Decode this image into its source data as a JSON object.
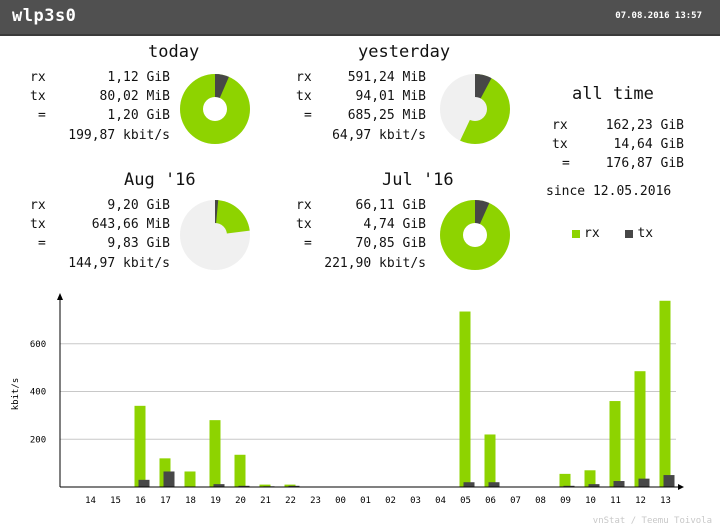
{
  "header": {
    "interface": "wlp3s0",
    "timestamp": "07.08.2016 13:57"
  },
  "summaries": [
    {
      "title": "today",
      "rx": "1,12 GiB",
      "tx": "80,02 MiB",
      "total": "1,20 GiB",
      "rate": "199,87 kbit/s",
      "pie": {
        "fill_fraction": 1.0,
        "tx_fraction": 0.065
      }
    },
    {
      "title": "yesterday",
      "rx": "591,24 MiB",
      "tx": "94,01 MiB",
      "total": "685,25 MiB",
      "rate": "64,97 kbit/s",
      "pie": {
        "fill_fraction": 0.57,
        "tx_fraction": 0.137
      }
    },
    {
      "title": "Aug '16",
      "rx": "9,20 GiB",
      "tx": "643,66 MiB",
      "total": "9,83 GiB",
      "rate": "144,97 kbit/s",
      "pie": {
        "fill_fraction": 0.23,
        "tx_fraction": 0.064
      }
    },
    {
      "title": "Jul '16",
      "rx": "66,11 GiB",
      "tx": "4,74 GiB",
      "total": "70,85 GiB",
      "rate": "221,90 kbit/s",
      "pie": {
        "fill_fraction": 1.0,
        "tx_fraction": 0.067
      }
    }
  ],
  "labels": {
    "rx": "rx",
    "tx": "tx",
    "eq": "="
  },
  "alltime": {
    "title": "all time",
    "rx": "162,23 GiB",
    "tx": "14,64 GiB",
    "total": "176,87 GiB",
    "since": "since 12.05.2016"
  },
  "legend": {
    "rx": "rx",
    "tx": "tx"
  },
  "colors": {
    "rx": "#8ed300",
    "tx": "#474747",
    "pie_bg": "#f0f0f0",
    "header": "#505050"
  },
  "credit": "vnStat / Teemu Toivola",
  "chart_data": {
    "type": "bar",
    "ylabel": "kbit/s",
    "ylim": [
      0,
      800
    ],
    "yticks": [
      200,
      400,
      600
    ],
    "categories": [
      "14",
      "15",
      "16",
      "17",
      "18",
      "19",
      "20",
      "21",
      "22",
      "23",
      "00",
      "01",
      "02",
      "03",
      "04",
      "05",
      "06",
      "07",
      "08",
      "09",
      "10",
      "11",
      "12",
      "13"
    ],
    "series": [
      {
        "name": "rx",
        "values": [
          0,
          0,
          340,
          120,
          65,
          280,
          135,
          10,
          10,
          0,
          0,
          0,
          0,
          0,
          0,
          735,
          220,
          0,
          0,
          55,
          70,
          360,
          485,
          780
        ]
      },
      {
        "name": "tx",
        "values": [
          0,
          0,
          30,
          65,
          0,
          12,
          5,
          3,
          5,
          0,
          0,
          0,
          0,
          0,
          0,
          20,
          20,
          0,
          0,
          5,
          12,
          25,
          35,
          50
        ]
      }
    ],
    "grid": true
  }
}
